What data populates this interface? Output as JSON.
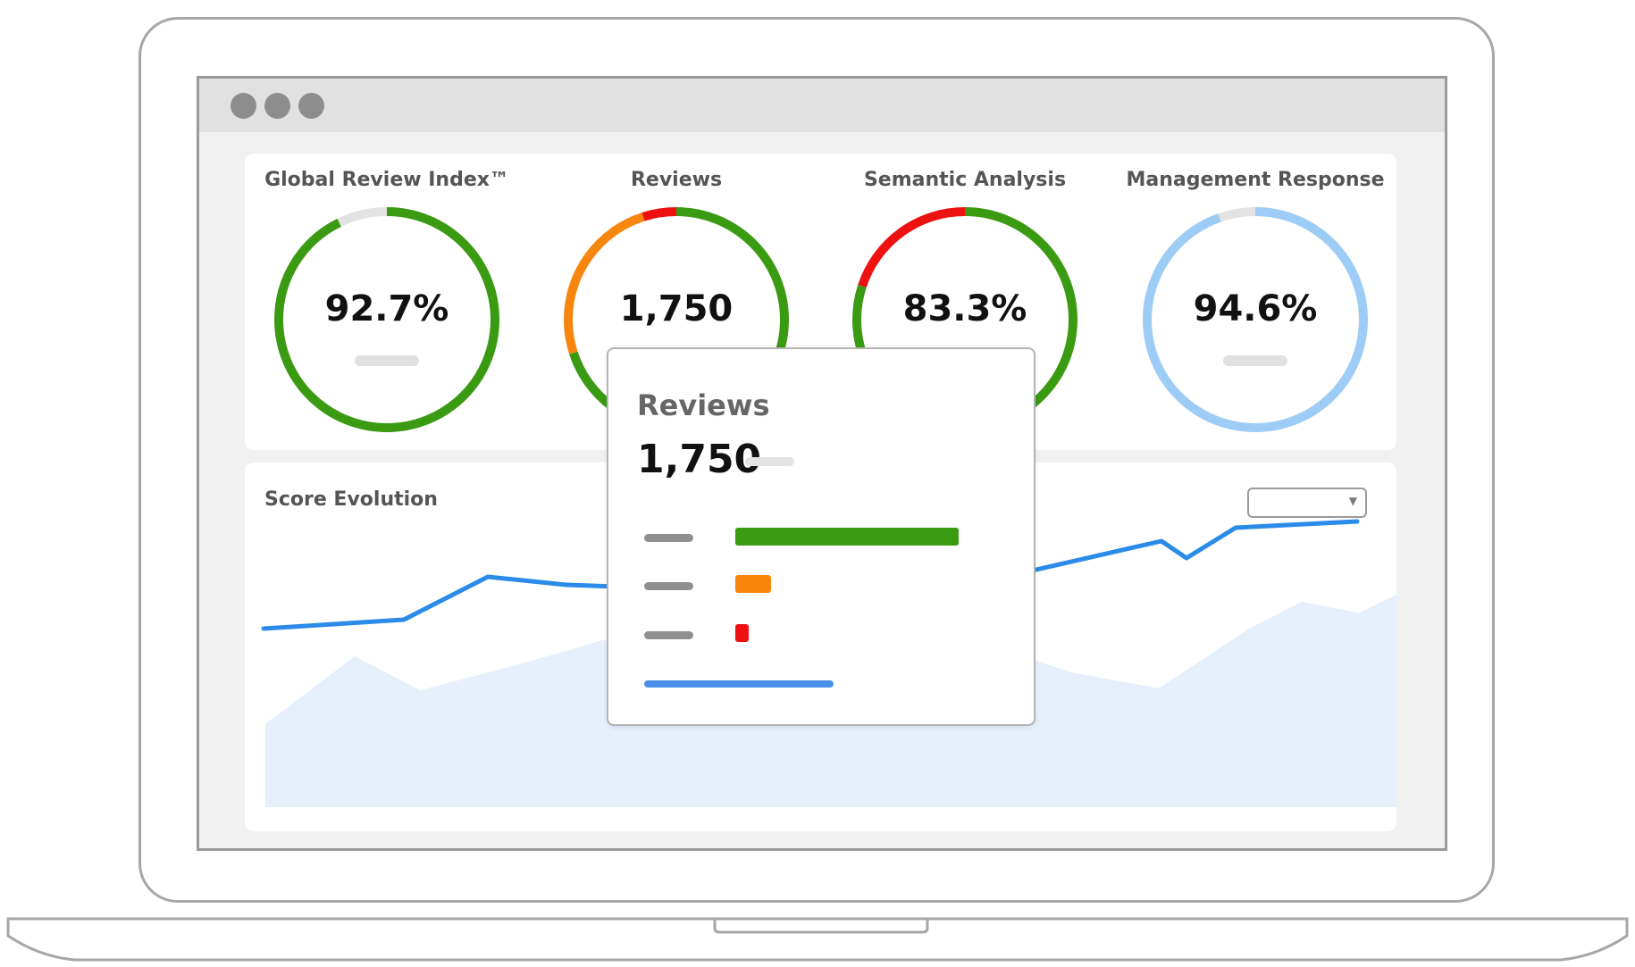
{
  "window": {
    "controls": [
      "close-dot",
      "minimize-dot",
      "maximize-dot"
    ]
  },
  "kpis": [
    {
      "title": "Global Review Index™",
      "value": "92.7%",
      "gauge": {
        "color": "#3a9a12",
        "fraction": 0.927,
        "track": "#e3e3e3"
      }
    },
    {
      "title": "Reviews",
      "value": "1,750",
      "gauge": {
        "segments": [
          {
            "color": "#3a9a12",
            "fraction": 0.7
          },
          {
            "color": "#f7860f",
            "fraction": 0.25
          },
          {
            "color": "#ee1111",
            "fraction": 0.05
          }
        ]
      }
    },
    {
      "title": "Semantic Analysis",
      "value": "83.3%",
      "gauge": {
        "segments": [
          {
            "color": "#3a9a12",
            "fraction": 0.8
          },
          {
            "color": "#ee1111",
            "fraction": 0.2
          }
        ]
      }
    },
    {
      "title": "Management Response",
      "value": "94.6%",
      "gauge": {
        "color": "#9dcdf7",
        "fraction": 0.946,
        "track": "#e3e3e3"
      }
    }
  ],
  "score_evolution": {
    "title": "Score Evolution",
    "line_color": "#2a8be8",
    "area_color": "#e5f0fc"
  },
  "popup": {
    "title": "Reviews",
    "value": "1,750",
    "rows": [
      {
        "color": "#3a9a12",
        "fraction": 1.0
      },
      {
        "color": "#f7860f",
        "fraction": 0.16
      },
      {
        "color": "#ee1111",
        "fraction": 0.06
      }
    ],
    "accent_line": "#4a8fe8"
  }
}
